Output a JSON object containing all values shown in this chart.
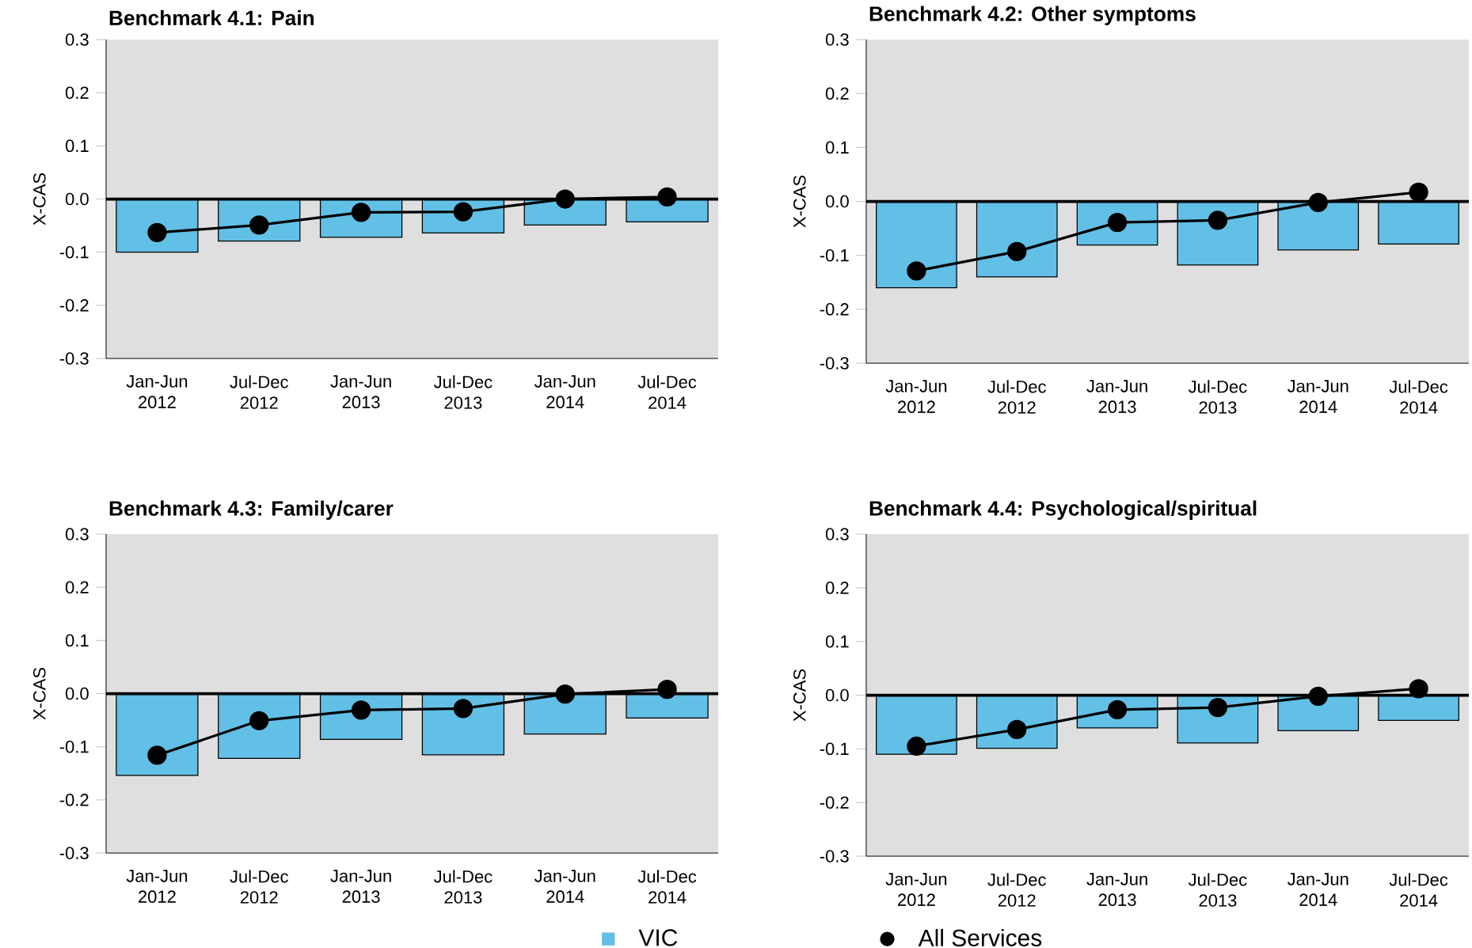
{
  "chart_data": [
    {
      "type": "bar",
      "title": "Benchmark 4.1: Pain",
      "ylabel": "X-CAS",
      "categories": [
        "Jan-Jun 2012",
        "Jul-Dec 2012",
        "Jan-Jun 2013",
        "Jul-Dec 2013",
        "Jan-Jun 2014",
        "Jul-Dec 2014"
      ],
      "series": [
        {
          "color": "#62bfe6",
          "values": [
            -0.1,
            -0.079,
            -0.072,
            -0.064,
            -0.049,
            -0.043
          ]
        },
        {
          "type": "line",
          "color": "#000000",
          "marker": "circle",
          "values": [
            -0.063,
            -0.049,
            -0.025,
            -0.024,
            0.0,
            0.004
          ]
        }
      ],
      "ylim": [
        -0.3,
        0.3
      ],
      "yticks": [
        {
          "value": -0.3,
          "label": "-0.3"
        },
        {
          "value": -0.2,
          "label": "-0.2"
        },
        {
          "value": -0.1,
          "label": "-0.1"
        },
        {
          "value": 0,
          "label": "0.0"
        },
        {
          "value": 0.1,
          "label": "0.1"
        },
        {
          "value": 0.2,
          "label": "0.2"
        },
        {
          "value": 0.3,
          "label": "0.3"
        }
      ],
      "ref_lines": [
        {
          "axis": "y",
          "value": 0
        }
      ]
    },
    {
      "type": "bar",
      "title": "Benchmark 4.2: Other symptoms",
      "ylabel": "X-CAS",
      "categories": [
        "Jan-Jun 2012",
        "Jul-Dec 2012",
        "Jan-Jun 2013",
        "Jul-Dec 2013",
        "Jan-Jun 2014",
        "Jul-Dec 2014"
      ],
      "series": [
        {
          "color": "#62bfe6",
          "values": [
            -0.16,
            -0.14,
            -0.081,
            -0.118,
            -0.09,
            -0.079
          ]
        },
        {
          "type": "line",
          "color": "#000000",
          "marker": "circle",
          "values": [
            -0.129,
            -0.093,
            -0.039,
            -0.035,
            -0.002,
            0.017
          ]
        }
      ],
      "ylim": [
        -0.3,
        0.3
      ],
      "yticks": [
        {
          "value": -0.3,
          "label": "-0.3"
        },
        {
          "value": -0.2,
          "label": "-0.2"
        },
        {
          "value": -0.1,
          "label": "-0.1"
        },
        {
          "value": 0,
          "label": "0.0"
        },
        {
          "value": 0.1,
          "label": "0.1"
        },
        {
          "value": 0.2,
          "label": "0.2"
        },
        {
          "value": 0.3,
          "label": "0.3"
        }
      ],
      "ref_lines": [
        {
          "axis": "y",
          "value": 0
        }
      ]
    },
    {
      "type": "bar",
      "title": "Benchmark 4.3: Family/carer",
      "ylabel": "X-CAS",
      "categories": [
        "Jan-Jun 2012",
        "Jul-Dec 2012",
        "Jan-Jun 2013",
        "Jul-Dec 2013",
        "Jan-Jun 2014",
        "Jul-Dec 2014"
      ],
      "series": [
        {
          "color": "#62bfe6",
          "values": [
            -0.154,
            -0.122,
            -0.086,
            -0.115,
            -0.076,
            -0.046
          ]
        },
        {
          "type": "line",
          "color": "#000000",
          "marker": "circle",
          "values": [
            -0.116,
            -0.051,
            -0.031,
            -0.028,
            -0.001,
            0.008
          ]
        }
      ],
      "ylim": [
        -0.3,
        0.3
      ],
      "yticks": [
        {
          "value": -0.3,
          "label": "-0.3"
        },
        {
          "value": -0.2,
          "label": "-0.2"
        },
        {
          "value": -0.1,
          "label": "-0.1"
        },
        {
          "value": 0,
          "label": "0.0"
        },
        {
          "value": 0.1,
          "label": "0.1"
        },
        {
          "value": 0.2,
          "label": "0.2"
        },
        {
          "value": 0.3,
          "label": "0.3"
        }
      ],
      "ref_lines": [
        {
          "axis": "y",
          "value": 0
        }
      ]
    },
    {
      "type": "bar",
      "title": "Benchmark 4.4: Psychological/spiritual",
      "ylabel": "X-CAS",
      "categories": [
        "Jan-Jun 2012",
        "Jul-Dec 2012",
        "Jan-Jun 2013",
        "Jul-Dec 2013",
        "Jan-Jun 2014",
        "Jul-Dec 2014"
      ],
      "series": [
        {
          "name": "VIC",
          "color": "#62bfe6",
          "values": [
            -0.11,
            -0.099,
            -0.061,
            -0.089,
            -0.066,
            -0.047
          ]
        },
        {
          "name": "All Services",
          "type": "line",
          "color": "#000000",
          "marker": "circle",
          "values": [
            -0.095,
            -0.064,
            -0.027,
            -0.023,
            -0.002,
            0.012
          ]
        }
      ],
      "ylim": [
        -0.3,
        0.3
      ],
      "yticks": [
        {
          "value": -0.3,
          "label": "-0.3"
        },
        {
          "value": -0.2,
          "label": "-0.2"
        },
        {
          "value": -0.1,
          "label": "-0.1"
        },
        {
          "value": 0,
          "label": "0.0"
        },
        {
          "value": 0.1,
          "label": "0.1"
        },
        {
          "value": 0.2,
          "label": "0.2"
        },
        {
          "value": 0.3,
          "label": "0.3"
        }
      ],
      "ref_lines": [
        {
          "axis": "y",
          "value": 0
        }
      ],
      "legend": "bottom"
    }
  ]
}
